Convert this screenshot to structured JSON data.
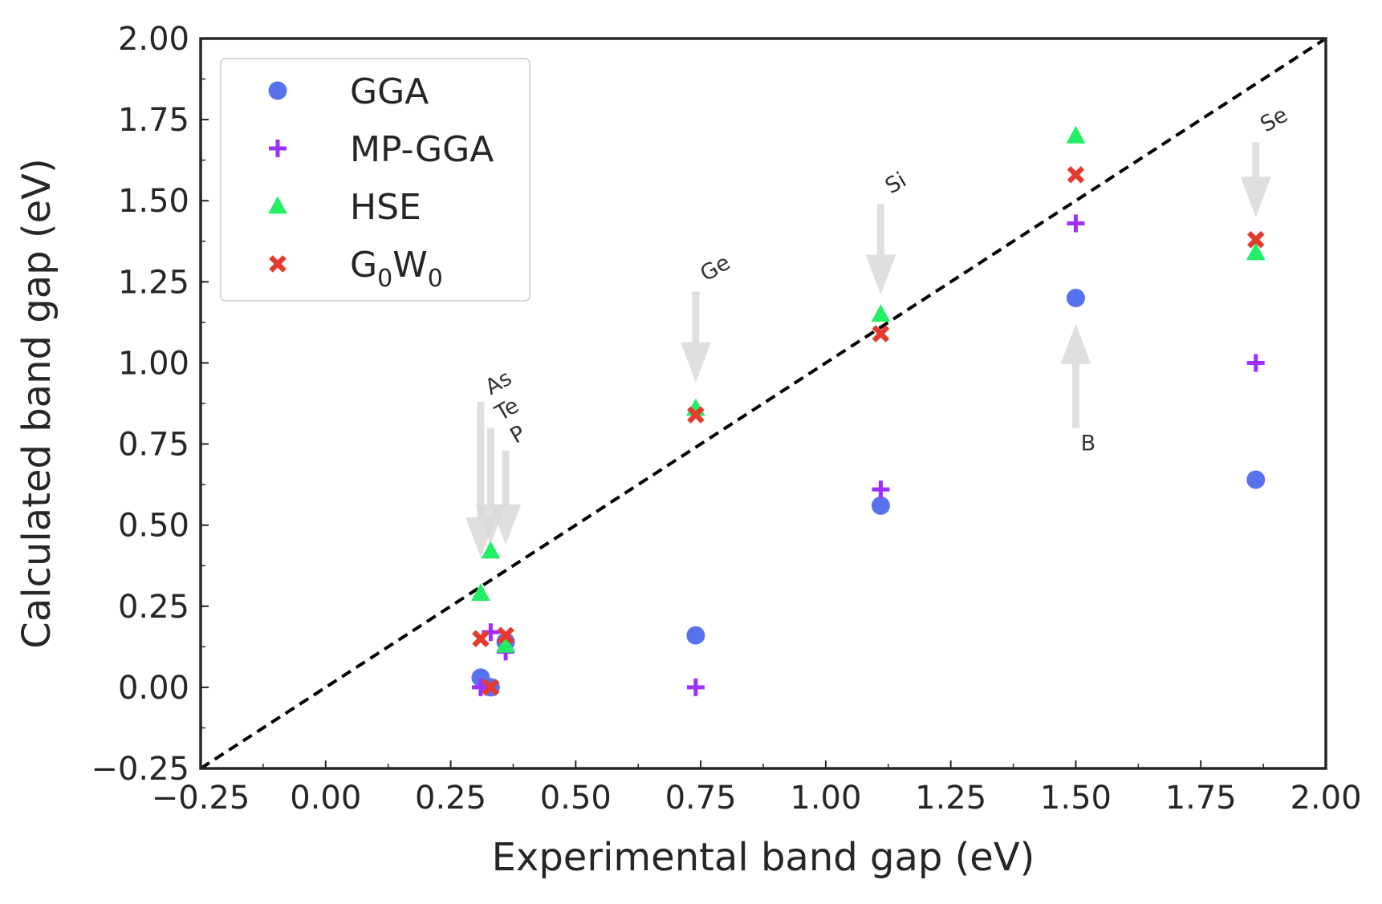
{
  "chart_data": {
    "type": "scatter",
    "xlabel": "Experimental band gap (eV)",
    "ylabel": "Calculated band gap (eV)",
    "xlim": [
      -0.25,
      2.0
    ],
    "ylim": [
      -0.25,
      2.0
    ],
    "xticks": [
      "−0.25",
      "0.00",
      "0.25",
      "0.50",
      "0.75",
      "1.00",
      "1.25",
      "1.50",
      "1.75",
      "2.00"
    ],
    "xtick_values": [
      -0.25,
      0.0,
      0.25,
      0.5,
      0.75,
      1.0,
      1.25,
      1.5,
      1.75,
      2.0
    ],
    "yticks": [
      "−0.25",
      "0.00",
      "0.25",
      "0.50",
      "0.75",
      "1.00",
      "1.25",
      "1.50",
      "1.75",
      "2.00"
    ],
    "ytick_values": [
      -0.25,
      0.0,
      0.25,
      0.5,
      0.75,
      1.0,
      1.25,
      1.5,
      1.75,
      2.0
    ],
    "grid": false,
    "legend_position": "top-left",
    "reference_line": {
      "style": "dashed",
      "color": "#000000",
      "from": [
        -0.25,
        -0.25
      ],
      "to": [
        2.0,
        2.0
      ]
    },
    "series": [
      {
        "name": "GGA",
        "marker": "circle",
        "color": "#5772ec",
        "points": [
          [
            0.31,
            0.03
          ],
          [
            0.33,
            0.0
          ],
          [
            0.36,
            0.14
          ],
          [
            0.74,
            0.16
          ],
          [
            1.11,
            0.56
          ],
          [
            1.5,
            1.2
          ],
          [
            1.86,
            0.64
          ]
        ]
      },
      {
        "name": "MP-GGA",
        "marker": "plus",
        "color": "#9b30ff",
        "points": [
          [
            0.31,
            0.0
          ],
          [
            0.33,
            0.17
          ],
          [
            0.36,
            0.11
          ],
          [
            0.74,
            0.0
          ],
          [
            1.11,
            0.61
          ],
          [
            1.5,
            1.43
          ],
          [
            1.86,
            1.0
          ]
        ]
      },
      {
        "name": "HSE",
        "marker": "triangle",
        "color": "#22ee66",
        "points": [
          [
            0.31,
            0.29
          ],
          [
            0.33,
            0.42
          ],
          [
            0.36,
            0.13
          ],
          [
            0.74,
            0.86
          ],
          [
            1.11,
            1.15
          ],
          [
            1.5,
            1.7
          ],
          [
            1.86,
            1.34
          ]
        ]
      },
      {
        "name_parts": [
          "G",
          "0",
          "W",
          "0"
        ],
        "marker": "x",
        "color": "#e53a2f",
        "points": [
          [
            0.31,
            0.15
          ],
          [
            0.33,
            0.0
          ],
          [
            0.36,
            0.16
          ],
          [
            0.74,
            0.84
          ],
          [
            1.11,
            1.09
          ],
          [
            1.5,
            1.58
          ],
          [
            1.86,
            1.38
          ]
        ]
      }
    ],
    "annotations": [
      {
        "text": "As",
        "arrow_from": [
          0.31,
          0.88
        ],
        "arrow_to": [
          0.31,
          0.4
        ],
        "text_at": [
          0.33,
          0.9
        ],
        "rotation": -30
      },
      {
        "text": "Te",
        "arrow_from": [
          0.33,
          0.8
        ],
        "arrow_to": [
          0.33,
          0.44
        ],
        "text_at": [
          0.35,
          0.82
        ],
        "rotation": -30
      },
      {
        "text": "P",
        "arrow_from": [
          0.36,
          0.73
        ],
        "arrow_to": [
          0.36,
          0.44
        ],
        "text_at": [
          0.38,
          0.75
        ],
        "rotation": -30
      },
      {
        "text": "Ge",
        "arrow_from": [
          0.74,
          1.22
        ],
        "arrow_to": [
          0.74,
          0.94
        ],
        "text_at": [
          0.76,
          1.25
        ],
        "rotation": -30
      },
      {
        "text": "Si",
        "arrow_from": [
          1.11,
          1.49
        ],
        "arrow_to": [
          1.11,
          1.21
        ],
        "text_at": [
          1.13,
          1.52
        ],
        "rotation": -30
      },
      {
        "text": "B",
        "arrow_from": [
          1.5,
          0.8
        ],
        "arrow_to": [
          1.5,
          1.12
        ],
        "text_at": [
          1.51,
          0.73
        ],
        "rotation": 0
      },
      {
        "text": "Se",
        "arrow_from": [
          1.86,
          1.68
        ],
        "arrow_to": [
          1.86,
          1.45
        ],
        "text_at": [
          1.88,
          1.71
        ],
        "rotation": -30
      }
    ]
  }
}
